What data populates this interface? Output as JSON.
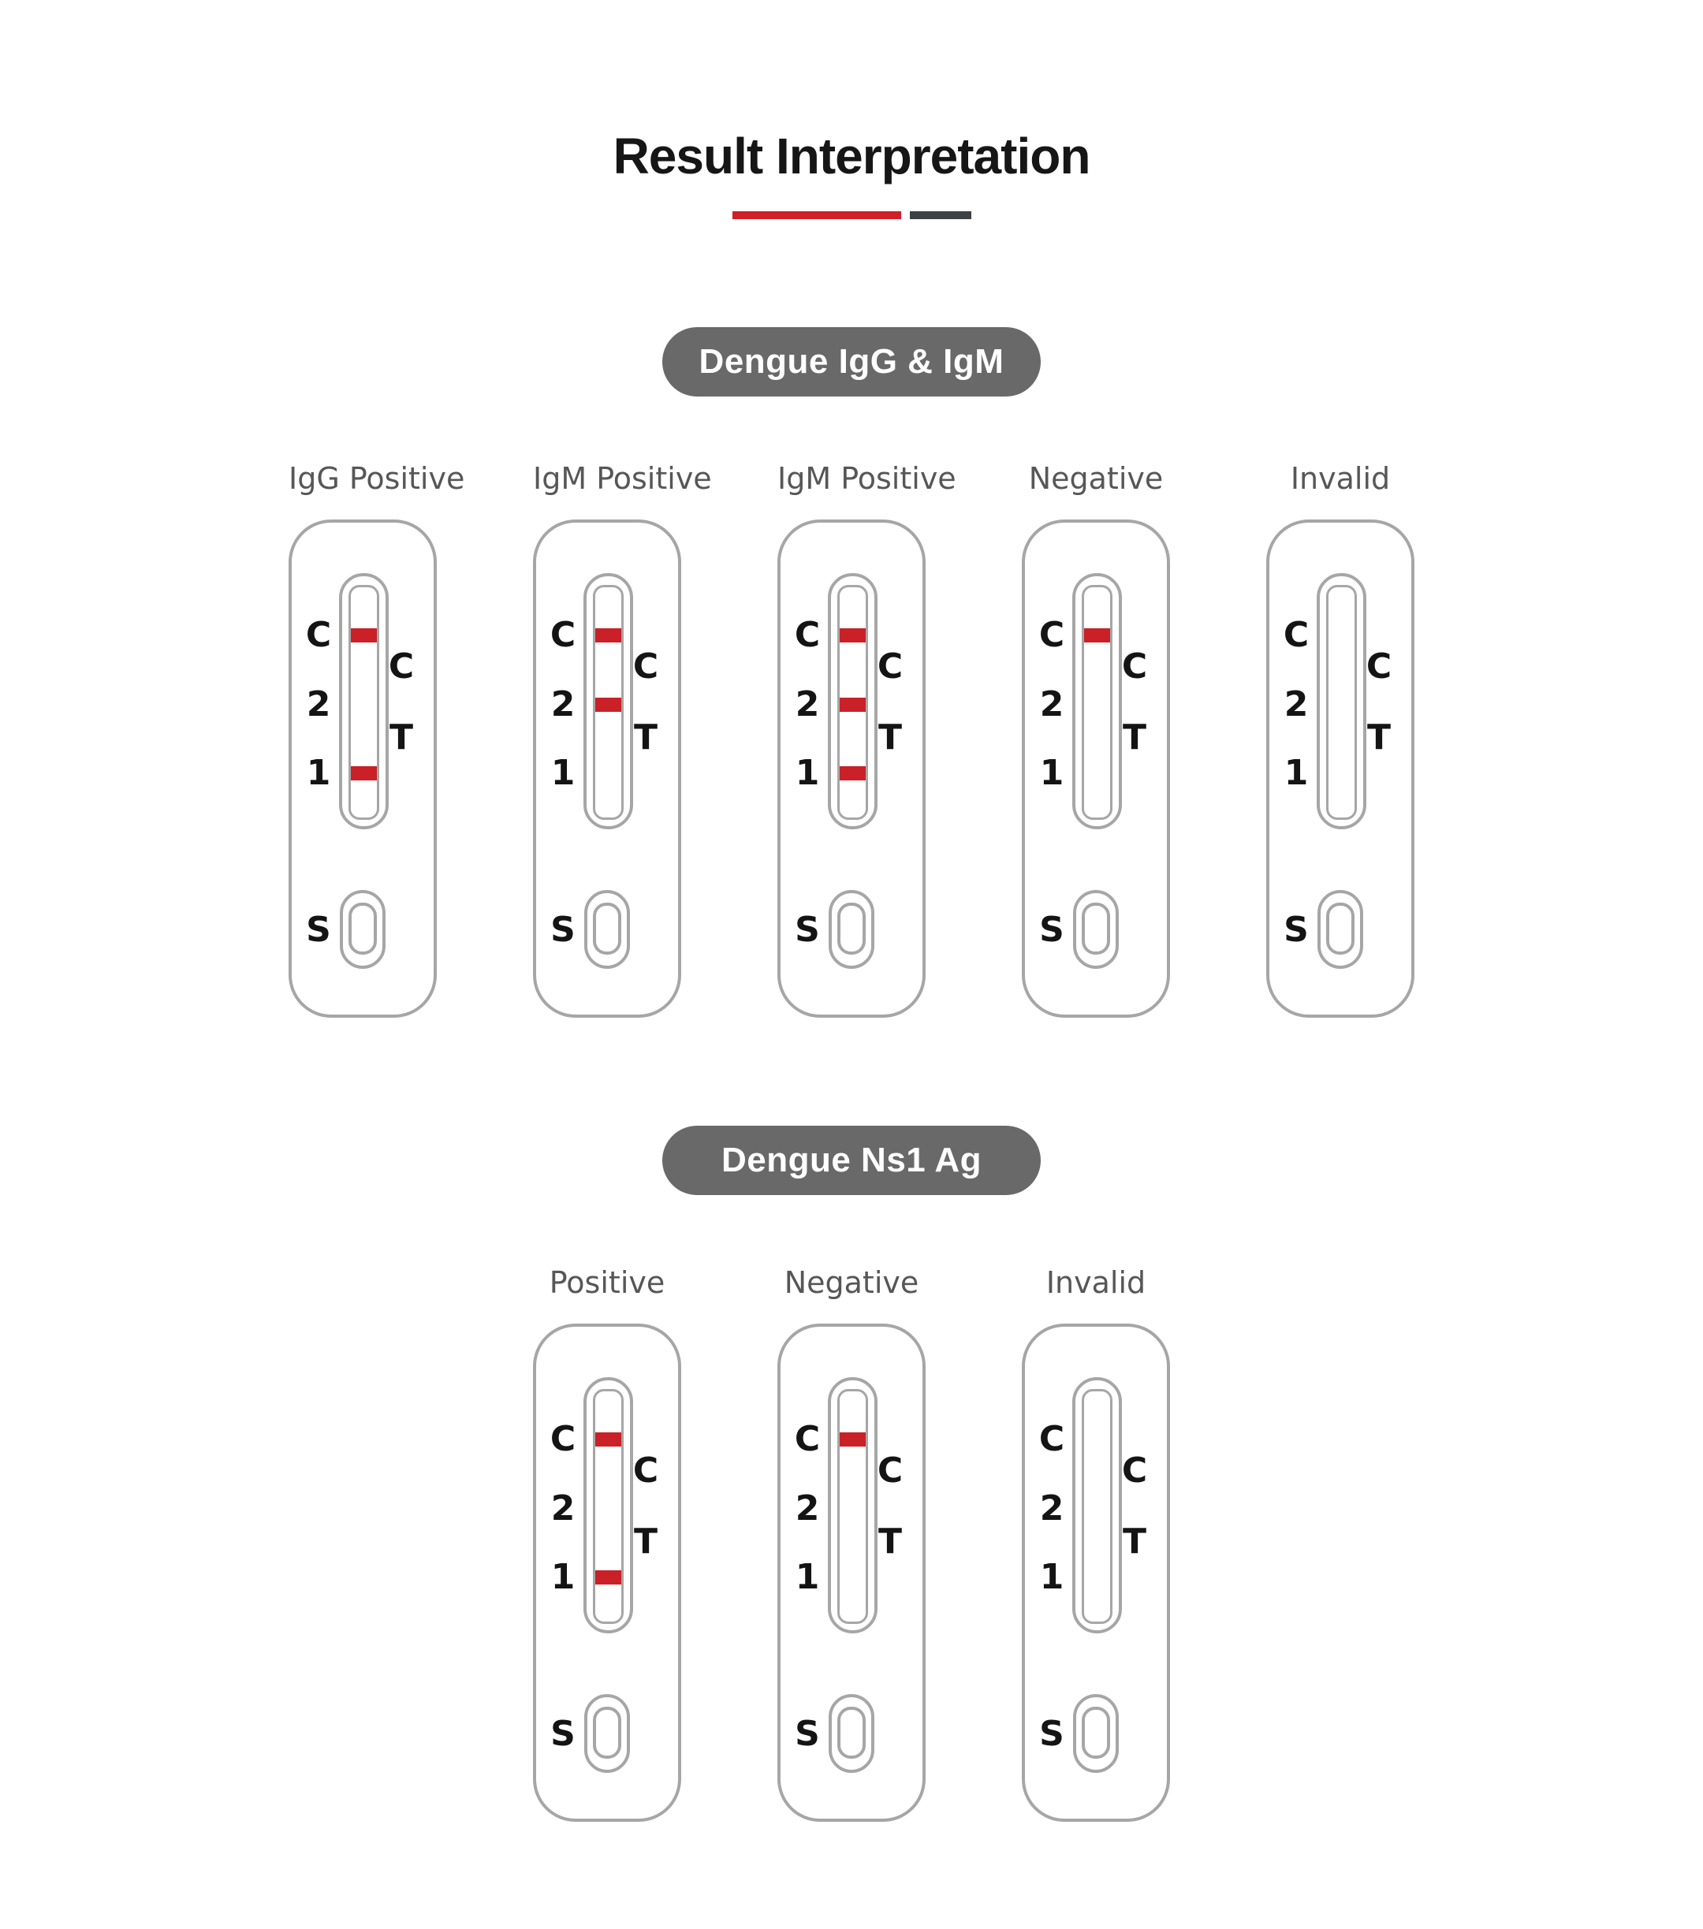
{
  "page": {
    "title": "Result Interpretation"
  },
  "sections": [
    {
      "badge": "Dengue IgG & IgM",
      "cassettes": [
        {
          "label": "IgG Positive",
          "bands": [
            "C",
            "1"
          ]
        },
        {
          "label": "IgM Positive",
          "bands": [
            "C",
            "2"
          ]
        },
        {
          "label": "IgM Positive",
          "bands": [
            "C",
            "2",
            "1"
          ]
        },
        {
          "label": "Negative",
          "bands": [
            "C"
          ]
        },
        {
          "label": "Invalid",
          "bands": []
        }
      ]
    },
    {
      "badge": "Dengue Ns1 Ag",
      "cassettes": [
        {
          "label": "Positive",
          "bands": [
            "C",
            "1"
          ]
        },
        {
          "label": "Negative",
          "bands": [
            "C"
          ]
        },
        {
          "label": "Invalid",
          "bands": []
        }
      ]
    }
  ],
  "cassette_markings": {
    "left": [
      "C",
      "2",
      "1"
    ],
    "right": [
      "C",
      "T"
    ],
    "sample": "S"
  },
  "colors": {
    "accent_red": "#d11f28",
    "divider_dark": "#3e4144",
    "band_red": "#c92127",
    "stroke_gray": "#a6a6a6",
    "badge_gray": "#696969",
    "badge_text": "#ffffff",
    "result_label_gray": "#575757",
    "marking_black": "#141414",
    "title_black": "#161616",
    "background": "#ffffff"
  }
}
